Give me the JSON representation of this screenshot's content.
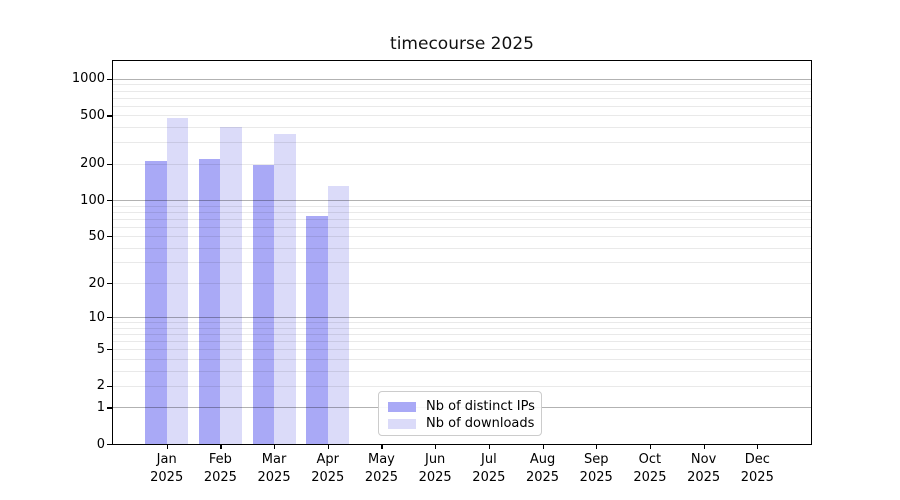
{
  "chart_data": {
    "type": "bar",
    "title": "timecourse 2025",
    "year_label": "2025",
    "months": [
      "Jan",
      "Feb",
      "Mar",
      "Apr",
      "May",
      "Jun",
      "Jul",
      "Aug",
      "Sep",
      "Oct",
      "Nov",
      "Dec"
    ],
    "series": [
      {
        "name": "Nb of distinct IPs",
        "color": "#a9a9f6",
        "values": [
          210,
          218,
          195,
          73,
          0,
          0,
          0,
          0,
          0,
          0,
          0,
          0
        ]
      },
      {
        "name": "Nb of downloads",
        "color": "#dbdbf9",
        "values": [
          474,
          404,
          354,
          131,
          0,
          0,
          0,
          0,
          0,
          0,
          0,
          0
        ]
      }
    ],
    "y_ticks": [
      0,
      1,
      2,
      5,
      10,
      20,
      50,
      100,
      200,
      500,
      1000
    ],
    "y_scale": "log10(value+1)",
    "y_axis_max": 1400,
    "grid": "horizontal, major on 1/10/100/1000, minor on 2-9 multiples",
    "legend_position": "inside lower-center",
    "legend_entries": [
      "Nb of distinct IPs",
      "Nb of downloads"
    ]
  }
}
